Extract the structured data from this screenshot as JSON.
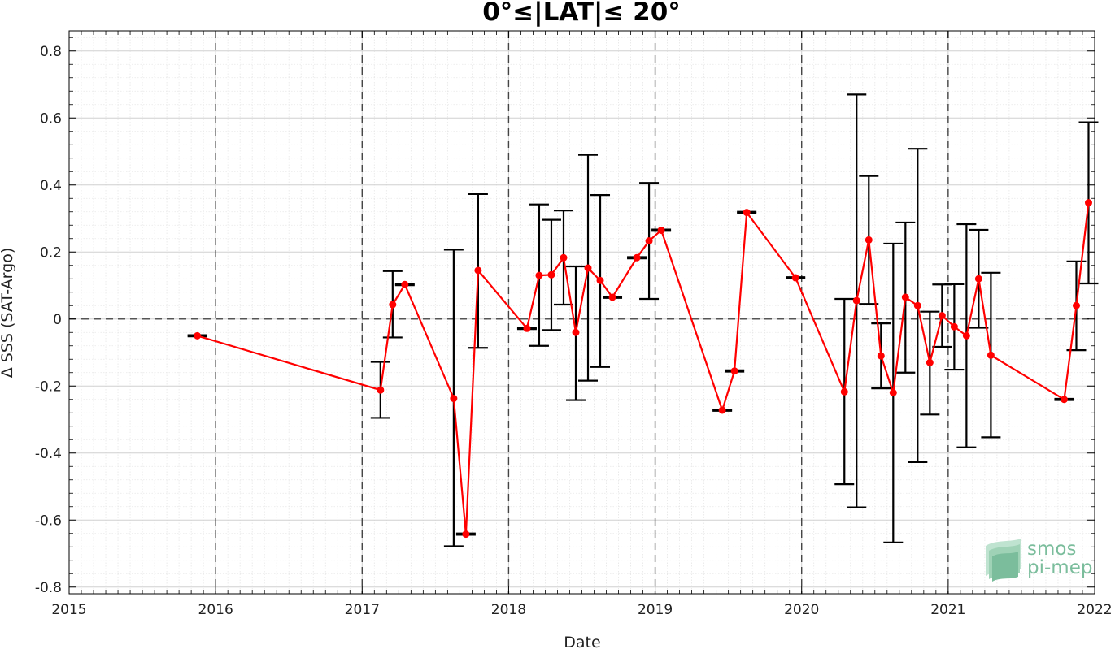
{
  "chart_data": {
    "type": "line",
    "title": "0°≤|LAT|≤ 20°",
    "xlabel": "Date",
    "ylabel": "Δ SSS (SAT-Argo)",
    "xlim": [
      2015,
      2022
    ],
    "ylim": [
      -0.82,
      0.86
    ],
    "xticks": [
      2015,
      2016,
      2017,
      2018,
      2019,
      2020,
      2021,
      2022
    ],
    "yticks": [
      -0.8,
      -0.6,
      -0.4,
      -0.2,
      0,
      0.2,
      0.4,
      0.6,
      0.8
    ],
    "ytick_labels": [
      "-0.8",
      "-0.6",
      "-0.4",
      "-0.2",
      "0",
      "0.2",
      "0.4",
      "0.6",
      "0.8"
    ],
    "grid": true,
    "zero_line": true,
    "series_color": "#ff0000",
    "errorbar_color": "#000000",
    "series": [
      {
        "points": [
          {
            "x": "2015-11",
            "y": -0.05,
            "lo": -0.052,
            "hi": -0.048
          },
          {
            "x": "2017-02",
            "y": -0.212,
            "lo": -0.295,
            "hi": -0.128
          },
          {
            "x": "2017-03",
            "y": 0.043,
            "lo": -0.055,
            "hi": 0.143
          },
          {
            "x": "2017-04",
            "y": 0.103,
            "lo": 0.101,
            "hi": 0.105
          },
          {
            "x": "2017-08",
            "y": -0.237,
            "lo": -0.678,
            "hi": 0.207
          },
          {
            "x": "2017-09",
            "y": -0.642,
            "lo": -0.644,
            "hi": -0.64
          },
          {
            "x": "2017-10",
            "y": 0.145,
            "lo": -0.086,
            "hi": 0.373
          },
          {
            "x": "2018-02",
            "y": -0.028,
            "lo": -0.03,
            "hi": -0.026
          },
          {
            "x": "2018-03",
            "y": 0.13,
            "lo": -0.08,
            "hi": 0.342
          },
          {
            "x": "2018-04",
            "y": 0.132,
            "lo": -0.033,
            "hi": 0.296
          },
          {
            "x": "2018-05",
            "y": 0.183,
            "lo": 0.043,
            "hi": 0.324
          },
          {
            "x": "2018-06",
            "y": -0.04,
            "lo": -0.242,
            "hi": 0.157
          },
          {
            "x": "2018-07",
            "y": 0.152,
            "lo": -0.184,
            "hi": 0.49
          },
          {
            "x": "2018-08",
            "y": 0.115,
            "lo": -0.143,
            "hi": 0.37
          },
          {
            "x": "2018-09",
            "y": 0.065,
            "lo": 0.063,
            "hi": 0.067
          },
          {
            "x": "2018-11",
            "y": 0.183,
            "lo": 0.181,
            "hi": 0.185
          },
          {
            "x": "2018-12",
            "y": 0.233,
            "lo": 0.06,
            "hi": 0.406
          },
          {
            "x": "2019-01",
            "y": 0.265,
            "lo": 0.263,
            "hi": 0.267
          },
          {
            "x": "2019-06",
            "y": -0.272,
            "lo": -0.274,
            "hi": -0.27
          },
          {
            "x": "2019-07",
            "y": -0.155,
            "lo": -0.157,
            "hi": -0.153
          },
          {
            "x": "2019-08",
            "y": 0.318,
            "lo": 0.316,
            "hi": 0.32
          },
          {
            "x": "2019-12",
            "y": 0.123,
            "lo": 0.121,
            "hi": 0.125
          },
          {
            "x": "2020-04",
            "y": -0.217,
            "lo": -0.493,
            "hi": 0.06
          },
          {
            "x": "2020-05",
            "y": 0.055,
            "lo": -0.562,
            "hi": 0.67
          },
          {
            "x": "2020-06",
            "y": 0.236,
            "lo": 0.045,
            "hi": 0.427
          },
          {
            "x": "2020-07",
            "y": -0.11,
            "lo": -0.207,
            "hi": -0.013
          },
          {
            "x": "2020-08",
            "y": -0.22,
            "lo": -0.667,
            "hi": 0.225
          },
          {
            "x": "2020-09",
            "y": 0.065,
            "lo": -0.16,
            "hi": 0.288
          },
          {
            "x": "2020-10",
            "y": 0.04,
            "lo": -0.427,
            "hi": 0.508
          },
          {
            "x": "2020-11",
            "y": -0.13,
            "lo": -0.285,
            "hi": 0.022
          },
          {
            "x": "2020-12",
            "y": 0.01,
            "lo": -0.083,
            "hi": 0.103
          },
          {
            "x": "2021-01",
            "y": -0.023,
            "lo": -0.151,
            "hi": 0.104
          },
          {
            "x": "2021-02",
            "y": -0.05,
            "lo": -0.383,
            "hi": 0.283
          },
          {
            "x": "2021-03",
            "y": 0.12,
            "lo": -0.026,
            "hi": 0.266
          },
          {
            "x": "2021-04",
            "y": -0.108,
            "lo": -0.353,
            "hi": 0.138
          },
          {
            "x": "2021-10",
            "y": -0.24,
            "lo": -0.242,
            "hi": -0.238
          },
          {
            "x": "2021-11",
            "y": 0.04,
            "lo": -0.093,
            "hi": 0.172
          },
          {
            "x": "2021-12",
            "y": 0.347,
            "lo": 0.106,
            "hi": 0.587
          }
        ]
      }
    ]
  },
  "logo": {
    "line1": "smos",
    "line2": "pi-mep"
  }
}
